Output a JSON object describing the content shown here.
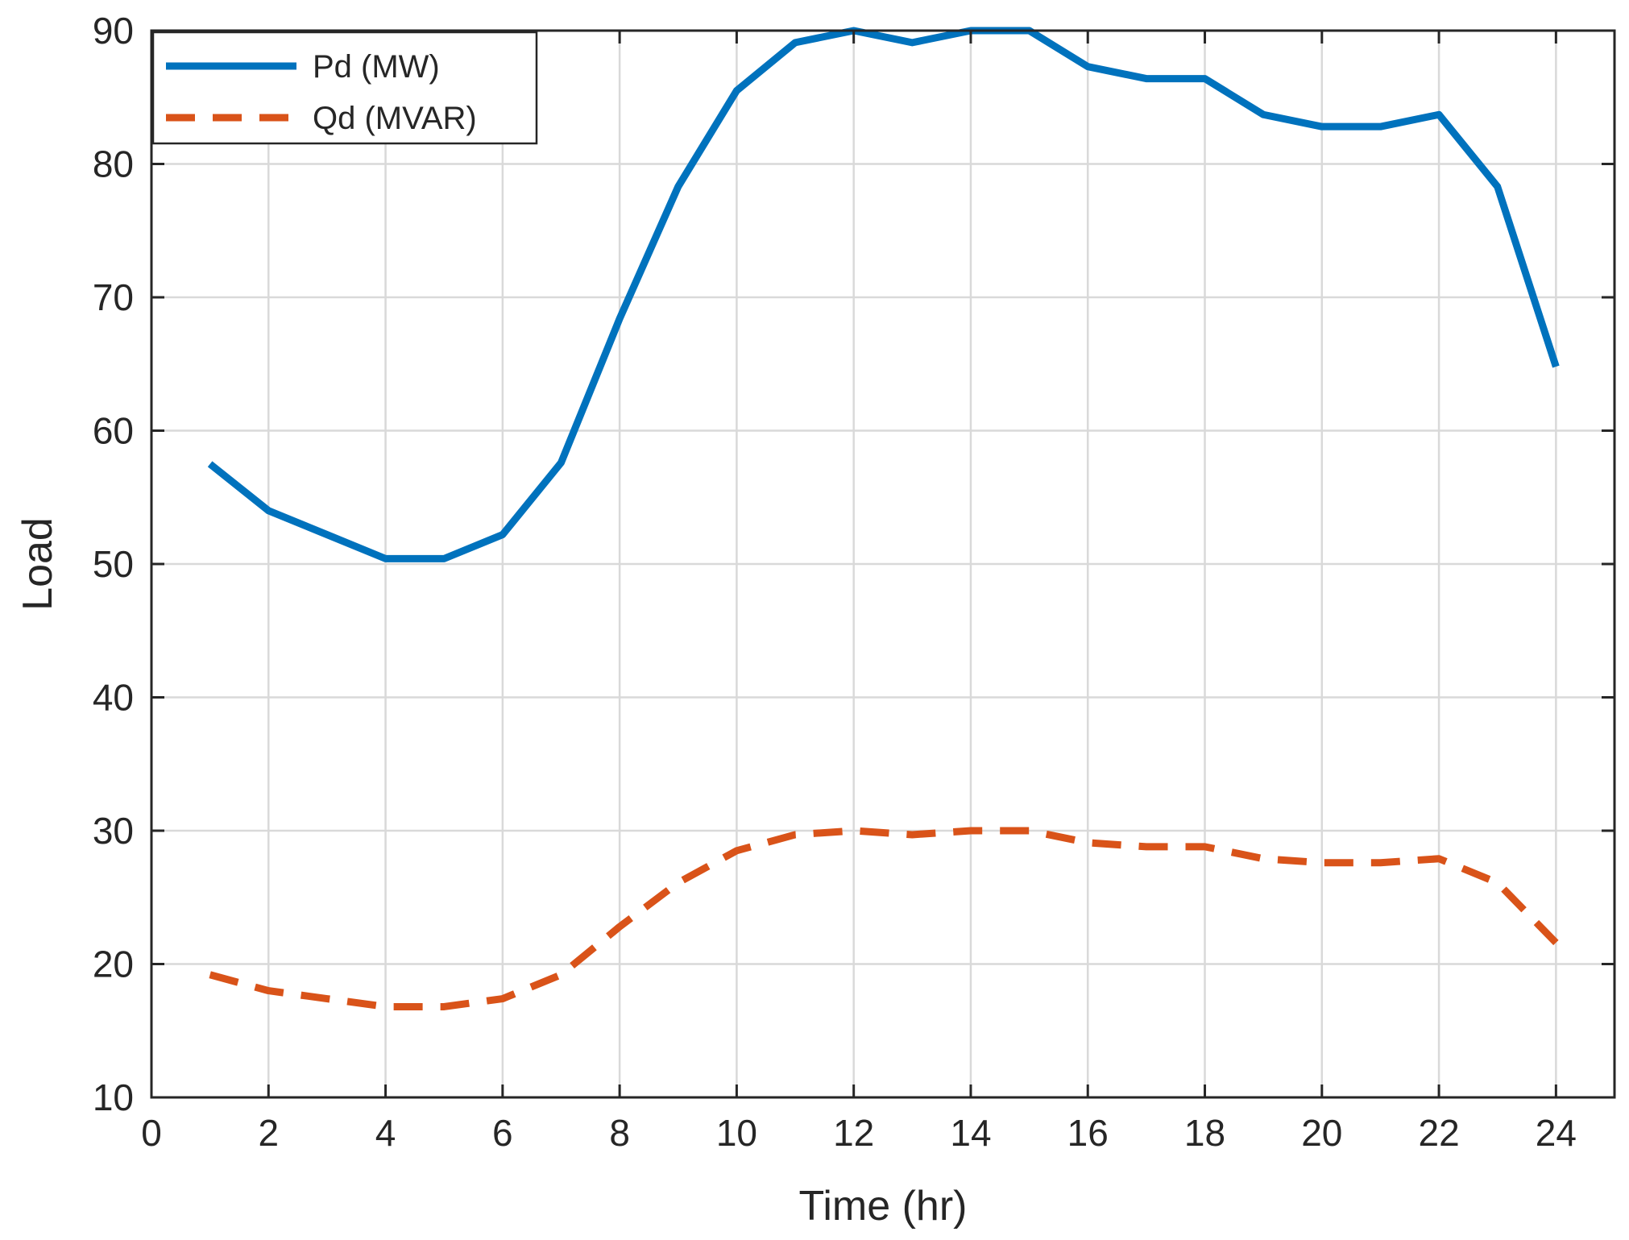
{
  "chart_data": {
    "type": "line",
    "title": "",
    "xlabel": "Time (hr)",
    "ylabel": "Load",
    "xlim": [
      0,
      25
    ],
    "ylim": [
      10,
      90
    ],
    "xticks": [
      0,
      2,
      4,
      6,
      8,
      10,
      12,
      14,
      16,
      18,
      20,
      22,
      24
    ],
    "yticks": [
      10,
      20,
      30,
      40,
      50,
      60,
      70,
      80,
      90
    ],
    "grid": true,
    "legend_position": "top-left",
    "x": [
      1,
      2,
      3,
      4,
      5,
      6,
      7,
      8,
      9,
      10,
      11,
      12,
      13,
      14,
      15,
      16,
      17,
      18,
      19,
      20,
      21,
      22,
      23,
      24
    ],
    "series": [
      {
        "name": "Pd (MW)",
        "color": "#0072BD",
        "style": "solid",
        "values": [
          57.5,
          54.0,
          52.2,
          50.4,
          50.4,
          52.2,
          57.6,
          68.4,
          78.3,
          85.5,
          89.1,
          90.0,
          89.1,
          90.0,
          90.0,
          87.3,
          86.4,
          86.4,
          83.7,
          82.8,
          82.8,
          83.7,
          78.3,
          64.8
        ]
      },
      {
        "name": "Qd (MVAR)",
        "color": "#D95319",
        "style": "dashed",
        "values": [
          19.2,
          18.0,
          17.4,
          16.8,
          16.8,
          17.4,
          19.2,
          22.8,
          26.1,
          28.5,
          29.7,
          30.0,
          29.7,
          30.0,
          30.0,
          29.1,
          28.8,
          28.8,
          27.9,
          27.6,
          27.6,
          27.9,
          26.1,
          21.6
        ]
      }
    ]
  }
}
